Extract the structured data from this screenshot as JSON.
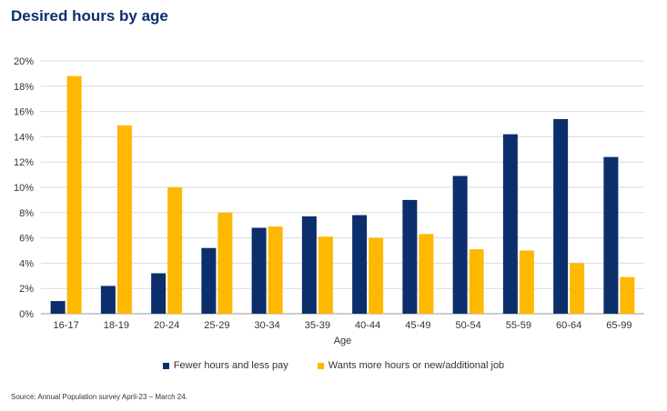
{
  "title": "Desired hours by age",
  "source": "Source: Annual Population survey April-23 – March 24.",
  "chart_data": {
    "type": "bar",
    "title": "Desired hours by age",
    "xlabel": "Age",
    "ylabel": "",
    "ylim": [
      0,
      20
    ],
    "y_ticks": [
      "0%",
      "2%",
      "4%",
      "6%",
      "8%",
      "10%",
      "12%",
      "14%",
      "16%",
      "18%",
      "20%"
    ],
    "grid": true,
    "legend_position": "bottom",
    "categories": [
      "16-17",
      "18-19",
      "20-24",
      "25-29",
      "30-34",
      "35-39",
      "40-44",
      "45-49",
      "50-54",
      "55-59",
      "60-64",
      "65-99"
    ],
    "series": [
      {
        "name": "Fewer hours and less pay",
        "color": "#0b2f6b",
        "values": [
          1.0,
          2.2,
          3.2,
          5.2,
          6.8,
          7.7,
          7.8,
          9.0,
          10.9,
          14.2,
          15.4,
          12.4
        ]
      },
      {
        "name": "Wants more hours or new/additional job",
        "color": "#ffb800",
        "values": [
          18.8,
          14.9,
          10.0,
          8.0,
          6.9,
          6.1,
          6.0,
          6.3,
          5.1,
          5.0,
          4.0,
          2.9
        ]
      }
    ]
  }
}
